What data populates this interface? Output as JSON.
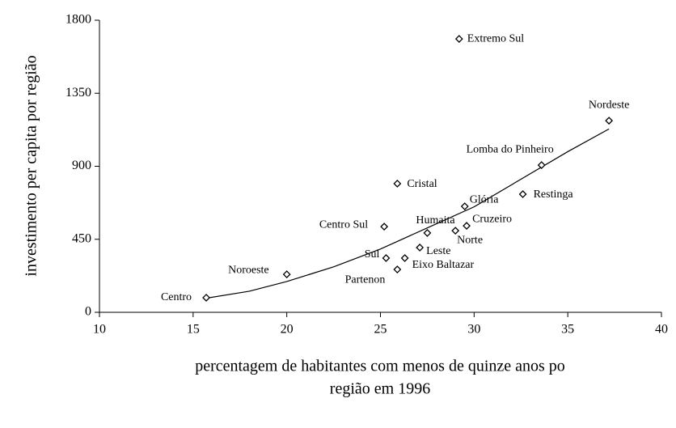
{
  "chart_data": {
    "type": "scatter",
    "x_label": [
      "percentagem de habitantes com menos de quinze anos po",
      "região em 1996"
    ],
    "y_label": "investimento per capita por região",
    "point_labels": [
      "Centro",
      "Noroeste",
      "Sul",
      "Partenon",
      "Eixo Baltazar",
      "Leste",
      "Centro Sul",
      "Humaitá",
      "Cristal",
      "Norte",
      "Cruzeiro",
      "Glória",
      "Extremo Sul",
      "Restinga",
      "Lomba do Pinheiro",
      "Nordeste"
    ],
    "x": [
      15.7,
      20.0,
      25.3,
      25.9,
      26.3,
      27.1,
      25.2,
      27.5,
      25.9,
      29.0,
      29.6,
      29.5,
      29.2,
      32.6,
      33.6,
      37.2
    ],
    "values": [
      90,
      234,
      334,
      264,
      334,
      399,
      528,
      489,
      793,
      503,
      533,
      653,
      1685,
      728,
      907,
      1181
    ],
    "color": "#000000",
    "trendline": {
      "x": [
        15.6,
        18,
        20,
        22.5,
        25,
        27.5,
        30,
        32.5,
        35,
        37.2
      ],
      "values": [
        85,
        130,
        190,
        280,
        390,
        520,
        650,
        820,
        990,
        1130
      ]
    },
    "xlim": [
      10,
      40
    ],
    "xticks": [
      10,
      15,
      20,
      25,
      30,
      35,
      40
    ],
    "ylim": [
      0,
      1800
    ],
    "yticks": [
      0,
      450,
      900,
      1350,
      1800
    ],
    "grid": false
  }
}
